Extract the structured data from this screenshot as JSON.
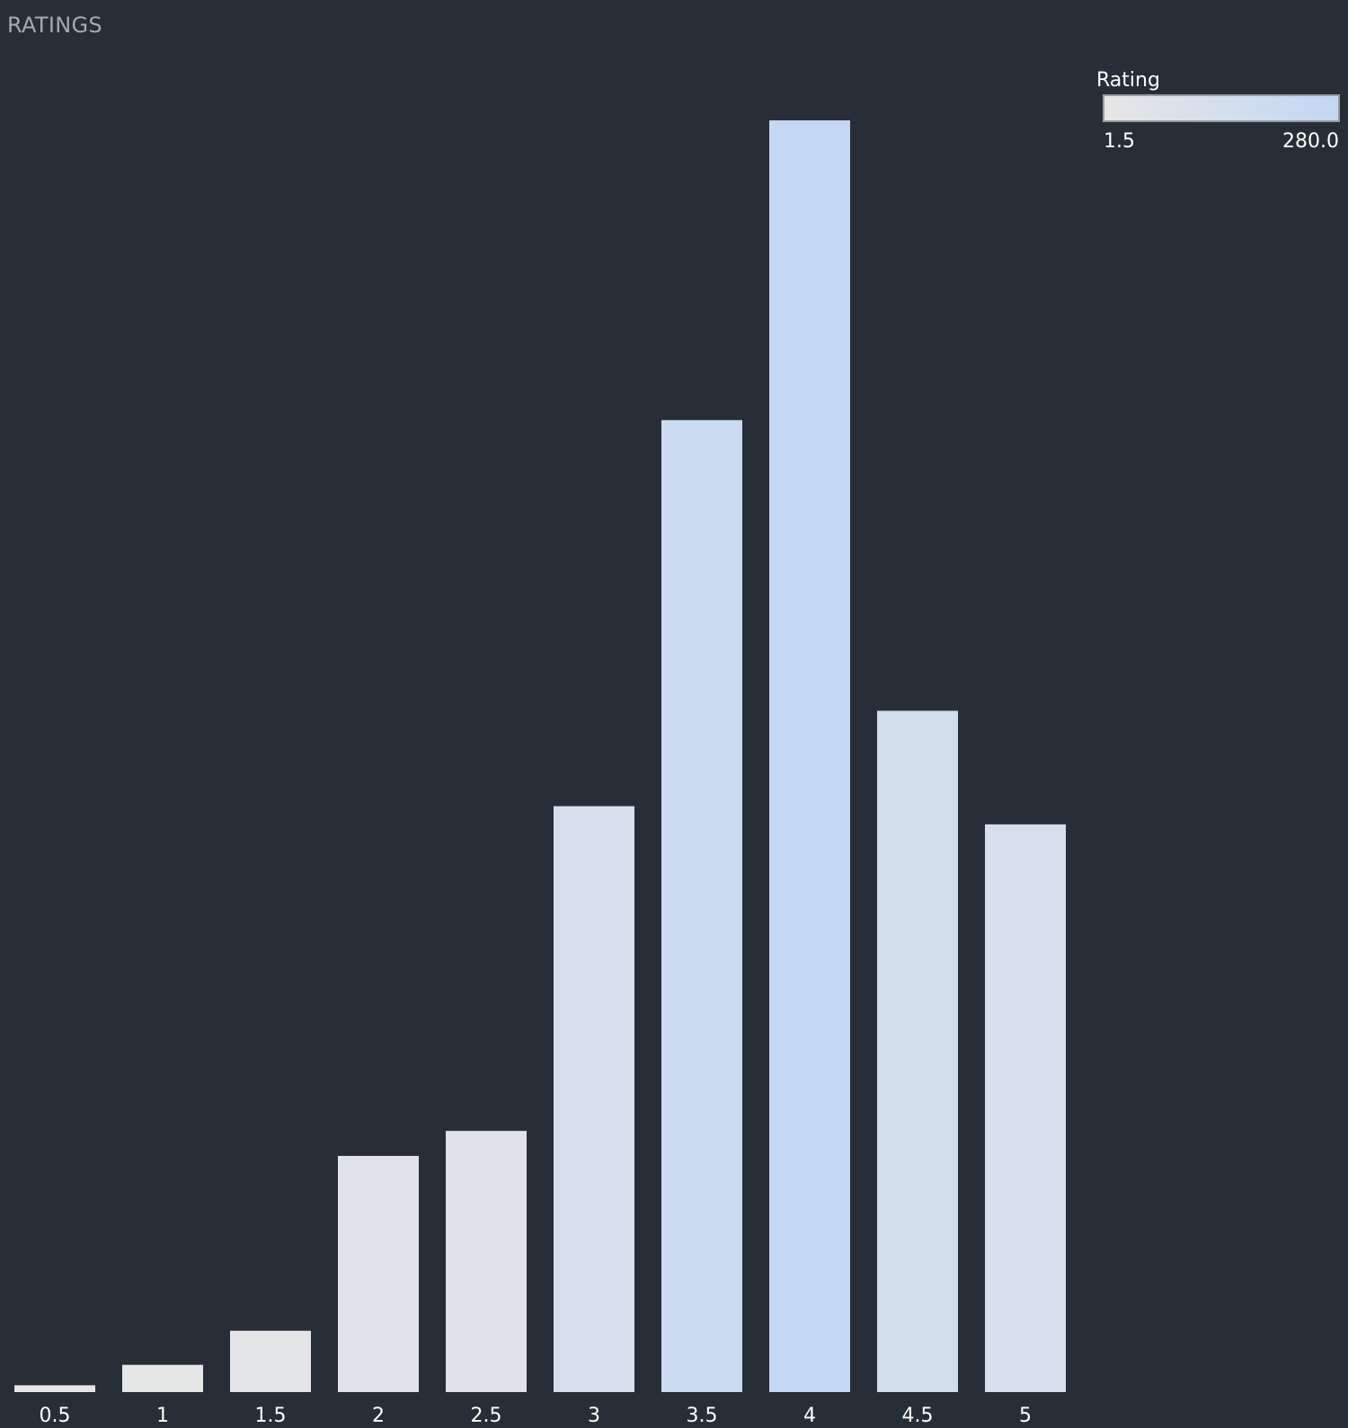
{
  "chart_data": {
    "type": "bar",
    "title": "RATINGS",
    "categories": [
      "0.5",
      "1",
      "1.5",
      "2",
      "2.5",
      "3",
      "3.5",
      "4",
      "4.5",
      "5"
    ],
    "values": [
      1.5,
      6,
      13.5,
      52,
      57.5,
      129,
      214,
      280,
      150,
      125
    ],
    "xlabel": "",
    "ylabel": "",
    "ylim": [
      0,
      280
    ],
    "grid": false,
    "legend": {
      "title": "Rating",
      "type": "color-gradient",
      "min_label": "1.5",
      "max_label": "280.0",
      "placement": "top-right"
    },
    "colors": {
      "background": "#282e37",
      "low": "#e6e6e6",
      "high": "#c3d7f4",
      "title_text": "#a6a9ad",
      "label_text": "#ffffff"
    }
  }
}
